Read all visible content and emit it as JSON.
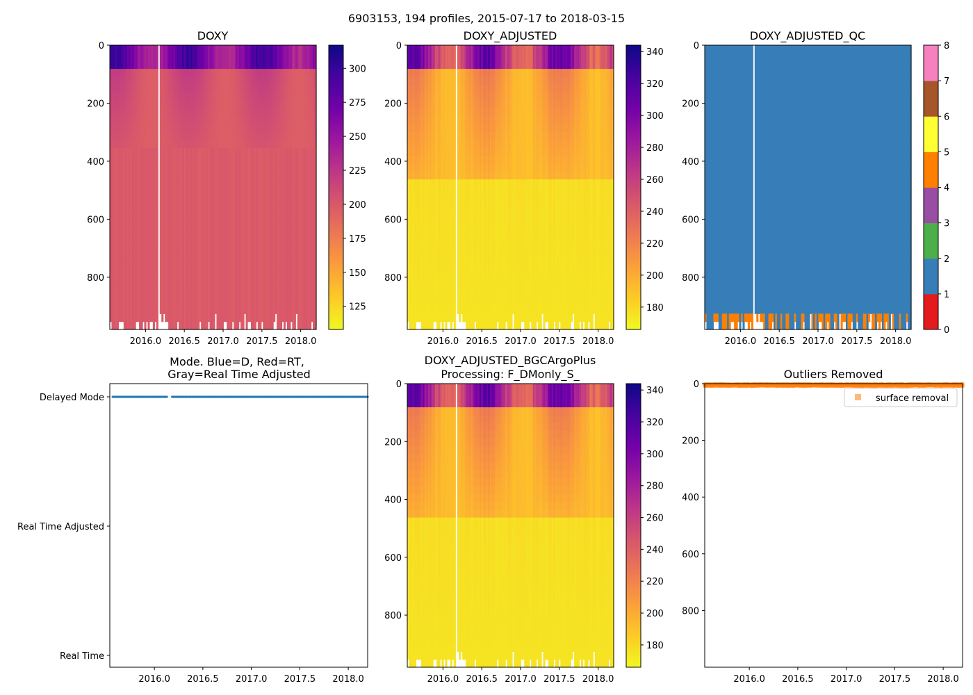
{
  "suptitle": "6903153, 194 profiles, 2015-07-17 to 2018-03-15",
  "x_ticks": [
    "2016.0",
    "2016.5",
    "2017.0",
    "2017.5",
    "2018.0"
  ],
  "depth_ticks": [
    "0",
    "200",
    "400",
    "600",
    "800"
  ],
  "colors": {
    "plasma": [
      "#f0f921",
      "#fdca26",
      "#fb9f3a",
      "#ed7953",
      "#d8576b",
      "#bd3786",
      "#9c179e",
      "#7201a8",
      "#46039f",
      "#0d0887"
    ],
    "qc_blue": "#377eb8",
    "qc_orange": "#ff7f00",
    "mode_blue": "#1f77b4",
    "outlier_orange": "#ff7f0e",
    "qc_palette": [
      "#e41a1c",
      "#377eb8",
      "#4daf4a",
      "#984ea3",
      "#ff7f00",
      "#ffff33",
      "#a65628",
      "#f781bf",
      "#999999"
    ]
  },
  "chart_data": [
    {
      "id": "doxy",
      "type": "heatmap",
      "title": "DOXY",
      "xlim": [
        2015.54,
        2018.2
      ],
      "ylim": [
        980,
        0
      ],
      "colorbar": {
        "min": 108,
        "max": 317,
        "ticks": [
          "125",
          "150",
          "175",
          "200",
          "225",
          "250",
          "275",
          "300"
        ]
      }
    },
    {
      "id": "doxy_adj",
      "type": "heatmap",
      "title": "DOXY_ADJUSTED",
      "xlim": [
        2015.54,
        2018.2
      ],
      "ylim": [
        980,
        0
      ],
      "colorbar": {
        "min": 166,
        "max": 344,
        "ticks": [
          "180",
          "200",
          "220",
          "240",
          "260",
          "280",
          "300",
          "320",
          "340"
        ]
      }
    },
    {
      "id": "doxy_qc",
      "type": "heatmap",
      "title": "DOXY_ADJUSTED_QC",
      "xlim": [
        2015.54,
        2018.2
      ],
      "ylim": [
        980,
        0
      ],
      "colorbar": {
        "min": 0,
        "max": 8,
        "ticks": [
          "0",
          "1",
          "2",
          "3",
          "4",
          "5",
          "6",
          "7",
          "8"
        ]
      }
    },
    {
      "id": "mode",
      "type": "scatter",
      "title": "Mode. Blue=D, Red=RT,",
      "title2": "Gray=Real Time Adjusted",
      "xlim": [
        2015.54,
        2018.2
      ],
      "y_categories": [
        "Delayed Mode",
        "Real Time Adjusted",
        "Real Time"
      ],
      "points_category": "Delayed Mode"
    },
    {
      "id": "plus",
      "type": "heatmap",
      "title": "DOXY_ADJUSTED_BGCArgoPlus",
      "title2": "Processing: F_DMonly_S_",
      "xlim": [
        2015.54,
        2018.2
      ],
      "ylim": [
        980,
        0
      ],
      "colorbar": {
        "min": 166,
        "max": 344,
        "ticks": [
          "180",
          "200",
          "220",
          "240",
          "260",
          "280",
          "300",
          "320",
          "340"
        ]
      }
    },
    {
      "id": "outliers",
      "type": "scatter",
      "title": "Outliers Removed",
      "xlim": [
        2015.54,
        2018.2
      ],
      "ylim": [
        1000,
        0
      ],
      "legend": "surface removal",
      "legend_position": "upper-right"
    }
  ]
}
